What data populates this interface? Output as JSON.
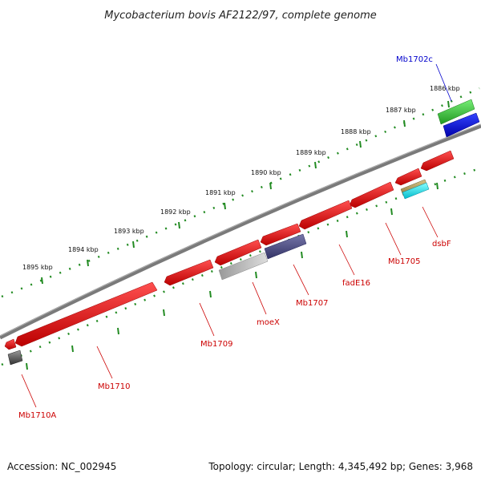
{
  "title": "Mycobacterium bovis AF2122/97, complete genome",
  "footer": {
    "accession": "Accession: NC_002945",
    "summary": "Topology: circular; Length: 4,345,492 bp; Genes: 3,968"
  },
  "ticks": [
    "1886 kbp",
    "1887 kbp",
    "1888 kbp",
    "1889 kbp",
    "1890 kbp",
    "1891 kbp",
    "1892 kbp",
    "1893 kbp",
    "1894 kbp",
    "1895 kbp"
  ],
  "genes": [
    {
      "label": "Mb1702c",
      "color": "#0000cc"
    },
    {
      "label": "dsbF",
      "color": "#cc0000"
    },
    {
      "label": "Mb1705",
      "color": "#cc0000"
    },
    {
      "label": "fadE16",
      "color": "#cc0000"
    },
    {
      "label": "Mb1707",
      "color": "#cc0000"
    },
    {
      "label": "moeX",
      "color": "#cc0000"
    },
    {
      "label": "Mb1709",
      "color": "#cc0000"
    },
    {
      "label": "Mb1710",
      "color": "#cc0000"
    },
    {
      "label": "Mb1710A",
      "color": "#cc0000"
    }
  ],
  "colors": {
    "backbone": "#7a7a7a",
    "gc_track": "#228b22",
    "cds": "#ee0000",
    "forward_top": "#33bb33",
    "forward_blue": "#0000ee",
    "slate": "#555588",
    "gray": "#aaaaaa",
    "cyan": "#00dddd",
    "khaki": "#b5a060"
  }
}
